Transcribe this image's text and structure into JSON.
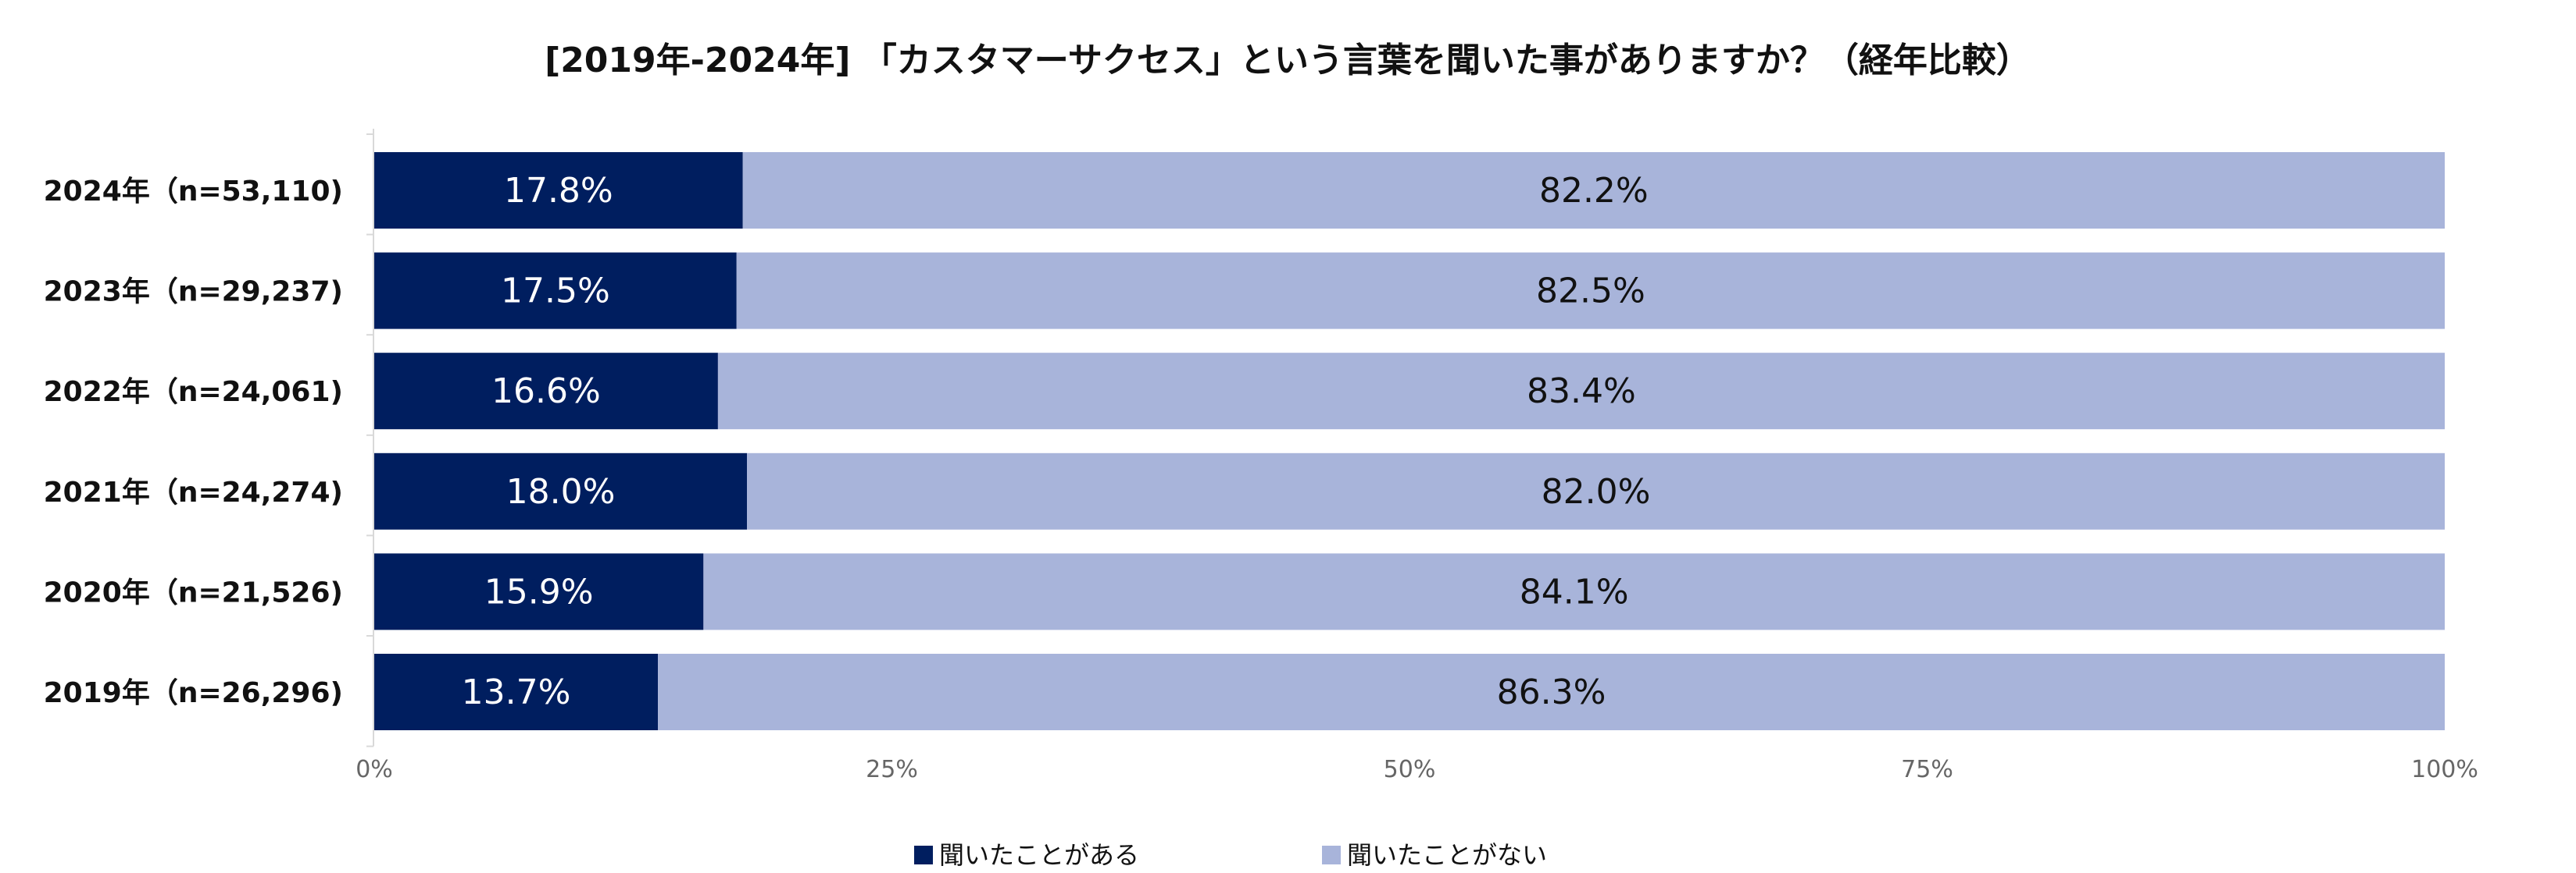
{
  "chart_data": {
    "type": "bar",
    "orientation": "horizontal",
    "stacked": true,
    "percent": true,
    "title": "[2019年-2024年] 「カスタマーサクセス」という言葉を聞いた事がありますか？（経年比較）",
    "categories": [
      "2024年（n=53,110)",
      "2023年（n=29,237)",
      "2022年（n=24,061)",
      "2021年（n=24,274)",
      "2020年（n=21,526)",
      "2019年（n=26,296)"
    ],
    "series": [
      {
        "name": "聞いたことがある",
        "color": "#001e5f",
        "values": [
          17.8,
          17.5,
          16.6,
          18.0,
          15.9,
          13.7
        ]
      },
      {
        "name": "聞いたことがない",
        "color": "#a8b4da",
        "values": [
          82.2,
          82.5,
          83.4,
          82.0,
          84.1,
          86.3
        ]
      }
    ],
    "data_labels": [
      [
        "17.8%",
        "82.2%"
      ],
      [
        "17.5%",
        "82.5%"
      ],
      [
        "16.6%",
        "83.4%"
      ],
      [
        "18.0%",
        "82.0%"
      ],
      [
        "15.9%",
        "84.1%"
      ],
      [
        "13.7%",
        "86.3%"
      ]
    ],
    "x_ticks": [
      0,
      25,
      50,
      75,
      100
    ],
    "x_tick_labels": [
      "0%",
      "25%",
      "50%",
      "75%",
      "100%"
    ],
    "xlim": [
      0,
      100
    ],
    "xlabel": "",
    "ylabel": "",
    "grid": false,
    "legend_position": "bottom"
  }
}
